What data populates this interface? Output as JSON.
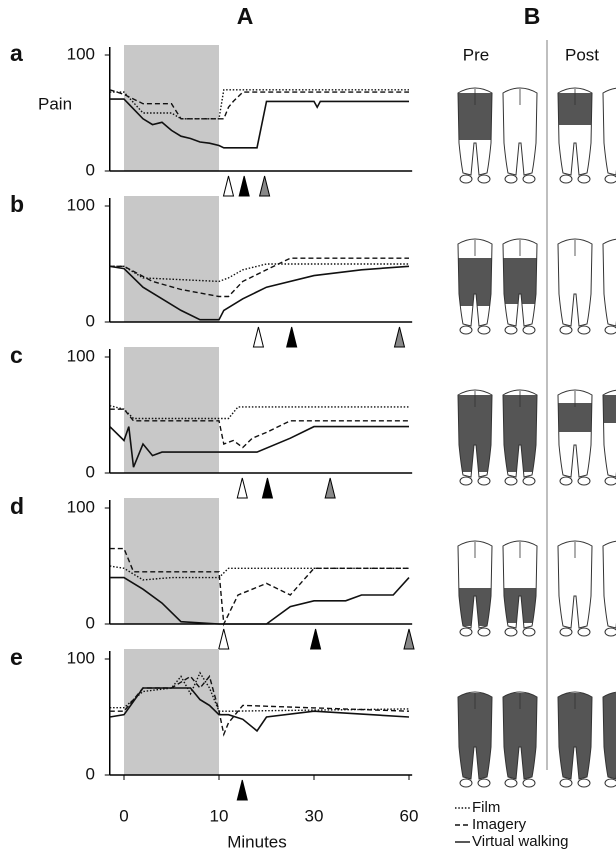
{
  "header": {
    "left": "A",
    "right": "B",
    "pre": "Pre",
    "post": "Post"
  },
  "legend": [
    {
      "name": "Film",
      "dash": "1.5 1.8"
    },
    {
      "name": "Imagery",
      "dash": "5 3"
    },
    {
      "name": "Virtual walking",
      "dash": "none"
    }
  ],
  "chart_data": [
    {
      "type": "line",
      "panel": "a",
      "ylabel": "Pain",
      "xlim": [
        -1.5,
        61
      ],
      "ylim": [
        0,
        100
      ],
      "yticks": [
        0,
        100
      ],
      "shade": [
        0,
        10
      ],
      "series": [
        {
          "x": [
            -1.5,
            0,
            2,
            5,
            6,
            10,
            11,
            60
          ],
          "values": [
            68,
            68,
            50,
            50,
            45,
            45,
            70,
            70
          ]
        },
        {
          "x": [
            -1.5,
            0,
            2,
            5,
            6,
            10,
            11,
            12,
            13,
            15,
            60
          ],
          "values": [
            70,
            66,
            58,
            58,
            45,
            45,
            45,
            55,
            60,
            68,
            68
          ]
        },
        {
          "x": [
            -1.5,
            0,
            2,
            3,
            4,
            5,
            6,
            7,
            8,
            9,
            10,
            11,
            18,
            20,
            30,
            31,
            32,
            60
          ],
          "values": [
            62,
            62,
            45,
            40,
            42,
            35,
            30,
            28,
            25,
            24,
            22,
            20,
            20,
            60,
            60,
            55,
            60,
            60
          ]
        }
      ],
      "arrows": [
        {
          "x": 12,
          "color": "#ffffff"
        },
        {
          "x": 15.3,
          "color": "#000000"
        },
        {
          "x": 19.6,
          "color": "#888888"
        }
      ]
    },
    {
      "type": "line",
      "panel": "b",
      "xlim": [
        -1.5,
        61
      ],
      "ylim": [
        0,
        100
      ],
      "yticks": [
        0,
        100
      ],
      "shade": [
        0,
        10
      ],
      "series": [
        {
          "x": [
            -1.5,
            0,
            2,
            10,
            12,
            15,
            20,
            60
          ],
          "values": [
            48,
            48,
            38,
            35,
            38,
            45,
            50,
            50
          ]
        },
        {
          "x": [
            -1.5,
            0,
            3,
            6,
            10,
            12,
            15,
            20,
            25,
            60
          ],
          "values": [
            48,
            48,
            35,
            28,
            22,
            22,
            35,
            45,
            55,
            55
          ]
        },
        {
          "x": [
            -1.5,
            0,
            2,
            4,
            6,
            8,
            10,
            11,
            15,
            20,
            30,
            45,
            60
          ],
          "values": [
            48,
            46,
            30,
            20,
            10,
            2,
            2,
            10,
            20,
            30,
            40,
            45,
            48
          ]
        }
      ],
      "arrows": [
        {
          "x": 18.3,
          "color": "#ffffff"
        },
        {
          "x": 25.3,
          "color": "#000000"
        },
        {
          "x": 57,
          "color": "#888888"
        }
      ]
    },
    {
      "type": "line",
      "panel": "c",
      "xlim": [
        -1.5,
        61
      ],
      "ylim": [
        0,
        100
      ],
      "yticks": [
        0,
        100
      ],
      "shade": [
        0,
        10
      ],
      "series": [
        {
          "x": [
            -1.5,
            0,
            1,
            10,
            12,
            14,
            60
          ],
          "values": [
            58,
            55,
            47,
            47,
            47,
            57,
            57
          ]
        },
        {
          "x": [
            -1.5,
            0,
            1,
            10,
            11,
            13,
            15,
            17,
            20,
            25,
            60
          ],
          "values": [
            55,
            55,
            45,
            45,
            25,
            28,
            22,
            30,
            35,
            45,
            45
          ]
        },
        {
          "x": [
            -1.5,
            0,
            0.5,
            1,
            2,
            3,
            4,
            10,
            18,
            25,
            30,
            60
          ],
          "values": [
            40,
            28,
            40,
            5,
            25,
            15,
            18,
            18,
            18,
            30,
            40,
            40
          ]
        }
      ],
      "arrows": [
        {
          "x": 14.9,
          "color": "#ffffff"
        },
        {
          "x": 20.2,
          "color": "#000000"
        },
        {
          "x": 35.1,
          "color": "#888888"
        }
      ]
    },
    {
      "type": "line",
      "panel": "d",
      "xlim": [
        -1.5,
        61
      ],
      "ylim": [
        0,
        100
      ],
      "yticks": [
        0,
        100
      ],
      "shade": [
        0,
        10
      ],
      "series": [
        {
          "x": [
            -1.5,
            0,
            2,
            5,
            10,
            12,
            60
          ],
          "values": [
            50,
            48,
            38,
            40,
            40,
            48,
            48
          ]
        },
        {
          "x": [
            -1.5,
            0,
            1,
            10,
            11,
            14,
            17,
            20,
            25,
            30,
            60
          ],
          "values": [
            65,
            65,
            45,
            45,
            0,
            25,
            30,
            35,
            25,
            48,
            48
          ]
        },
        {
          "x": [
            -1.5,
            0,
            2,
            4,
            6,
            10,
            20,
            25,
            30,
            40,
            45,
            55,
            60
          ],
          "values": [
            40,
            40,
            30,
            18,
            2,
            0,
            0,
            15,
            20,
            20,
            25,
            25,
            40
          ]
        }
      ],
      "arrows": [
        {
          "x": 11,
          "color": "#ffffff"
        },
        {
          "x": 30.5,
          "color": "#000000"
        },
        {
          "x": 60,
          "color": "#888888"
        }
      ]
    },
    {
      "type": "line",
      "panel": "e",
      "xlabel": "Minutes",
      "xlim": [
        -1.5,
        61
      ],
      "xticks": [
        0,
        10,
        30,
        60
      ],
      "ylim": [
        0,
        100
      ],
      "yticks": [
        0,
        100
      ],
      "shade": [
        0,
        10
      ],
      "series": [
        {
          "x": [
            -1.5,
            0,
            2,
            5,
            6,
            7,
            8,
            9,
            10,
            12,
            60
          ],
          "values": [
            58,
            58,
            72,
            75,
            85,
            70,
            88,
            75,
            55,
            55,
            57
          ]
        },
        {
          "x": [
            -1.5,
            0,
            2,
            5,
            7,
            8,
            9,
            10,
            11,
            12,
            15,
            60
          ],
          "values": [
            55,
            55,
            75,
            75,
            85,
            75,
            85,
            55,
            35,
            45,
            60,
            55
          ]
        },
        {
          "x": [
            -1.5,
            0,
            2,
            7,
            8,
            9,
            10,
            12,
            15,
            18,
            20,
            30,
            60
          ],
          "values": [
            50,
            52,
            75,
            75,
            65,
            60,
            52,
            52,
            48,
            38,
            50,
            55,
            50
          ]
        }
      ],
      "arrows": [
        {
          "x": 14.9,
          "color": "#000000"
        }
      ]
    }
  ]
}
